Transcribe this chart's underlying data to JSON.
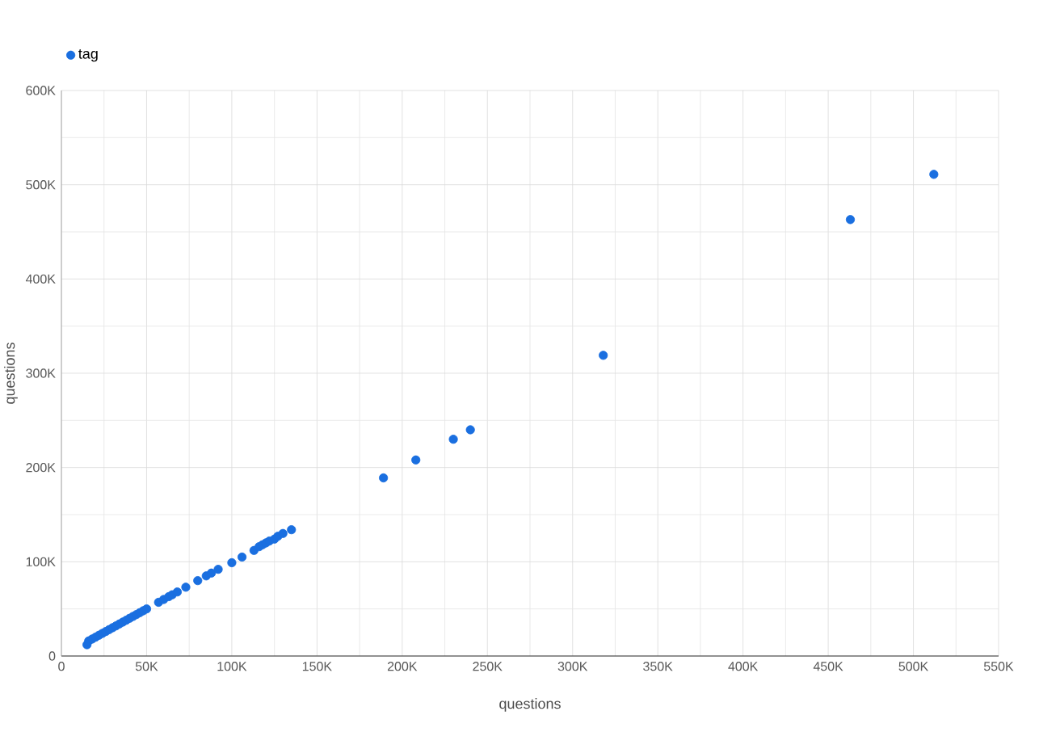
{
  "chart_data": {
    "type": "scatter",
    "xlabel": "questions",
    "ylabel": "questions",
    "legend": "top left",
    "grid": true,
    "marker": "circle",
    "xlim": [
      0,
      550000
    ],
    "ylim": [
      0,
      600000
    ],
    "xticks": [
      {
        "value": 0,
        "label": "0"
      },
      {
        "value": 50000,
        "label": "50K"
      },
      {
        "value": 100000,
        "label": "100K"
      },
      {
        "value": 150000,
        "label": "150K"
      },
      {
        "value": 200000,
        "label": "200K"
      },
      {
        "value": 250000,
        "label": "250K"
      },
      {
        "value": 300000,
        "label": "300K"
      },
      {
        "value": 350000,
        "label": "350K"
      },
      {
        "value": 400000,
        "label": "400K"
      },
      {
        "value": 450000,
        "label": "450K"
      },
      {
        "value": 500000,
        "label": "500K"
      },
      {
        "value": 550000,
        "label": "550K"
      }
    ],
    "yticks": [
      {
        "value": 0,
        "label": "0"
      },
      {
        "value": 100000,
        "label": "100K"
      },
      {
        "value": 200000,
        "label": "200K"
      },
      {
        "value": 300000,
        "label": "300K"
      },
      {
        "value": 400000,
        "label": "400K"
      },
      {
        "value": 500000,
        "label": "500K"
      },
      {
        "value": 600000,
        "label": "600K"
      }
    ],
    "series": [
      {
        "name": "tag",
        "color": "#1a6fe0",
        "x": [
          15000,
          16000,
          18000,
          20000,
          22000,
          24000,
          26000,
          28000,
          30000,
          32000,
          34000,
          36000,
          38000,
          40000,
          42000,
          44000,
          46000,
          48000,
          50000,
          57000,
          60000,
          63000,
          65000,
          68000,
          73000,
          80000,
          85000,
          88000,
          92000,
          100000,
          106000,
          113000,
          116000,
          118000,
          120000,
          122000,
          125000,
          127000,
          130000,
          135000,
          189000,
          208000,
          230000,
          240000,
          318000,
          463000,
          512000
        ],
        "values": [
          12000,
          16000,
          18000,
          20000,
          22000,
          24000,
          26000,
          28000,
          30000,
          32000,
          34000,
          36000,
          38000,
          40000,
          42000,
          44000,
          46000,
          48000,
          50000,
          57000,
          60000,
          63000,
          65000,
          68000,
          73000,
          80000,
          85000,
          88000,
          92000,
          99000,
          105000,
          112000,
          116000,
          118000,
          120000,
          122000,
          124000,
          127000,
          130000,
          134000,
          189000,
          208000,
          230000,
          240000,
          319000,
          463000,
          511000
        ]
      }
    ]
  }
}
